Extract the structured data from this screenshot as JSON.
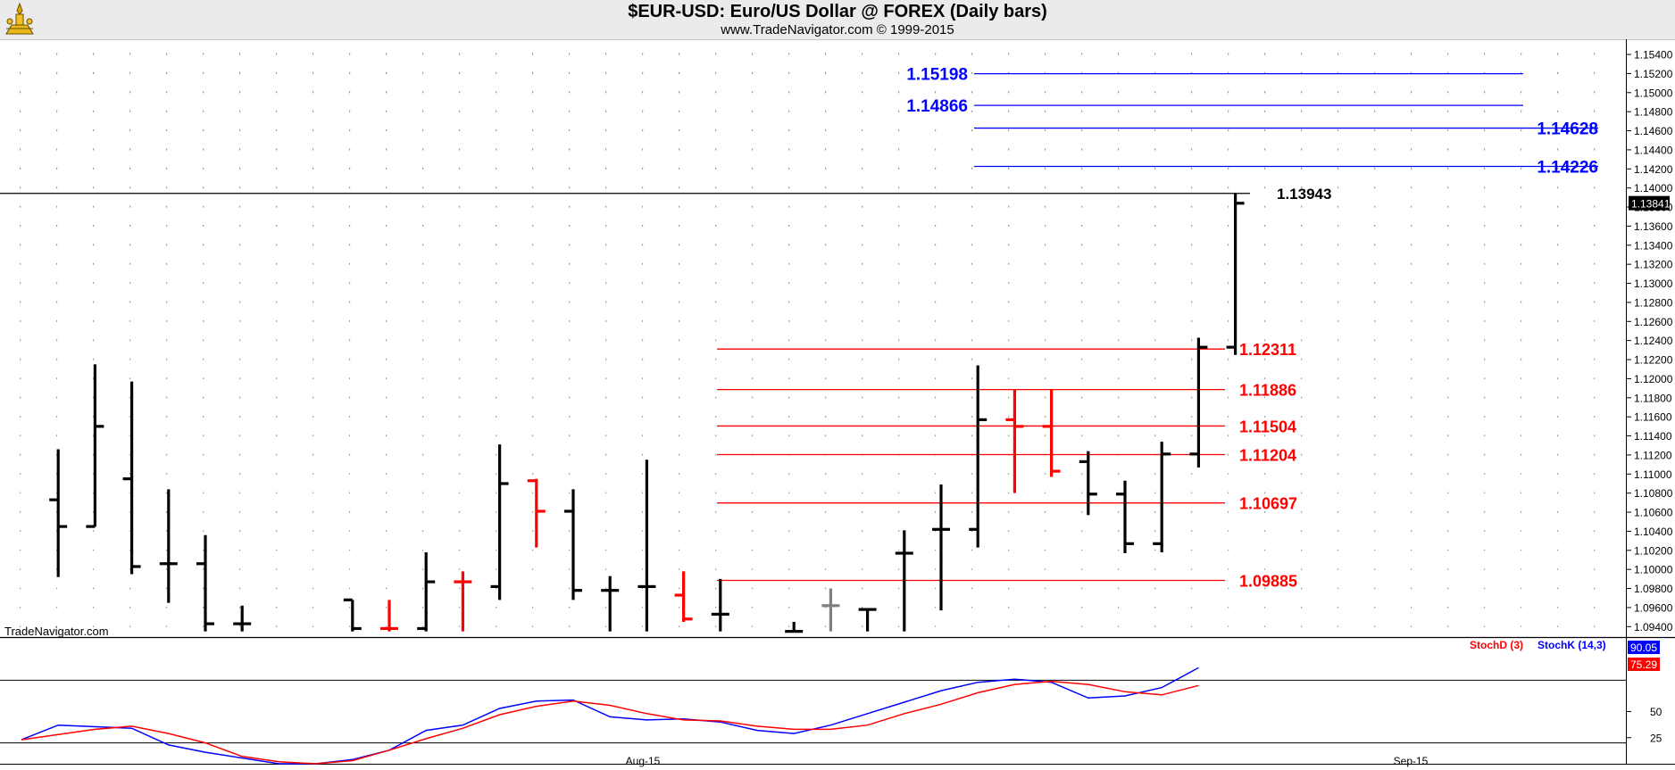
{
  "header": {
    "title": "$EUR-USD:  Euro/US Dollar @ FOREX  (Daily bars)",
    "subtitle": "www.TradeNavigator.com © 1999-2015"
  },
  "watermark": "TradeNavigator.com",
  "colors": {
    "up_bar": "#000000",
    "down_bar": "#ff0000",
    "neutral_bar": "#808080",
    "projection_line": "#0000ff",
    "retracement_line": "#ff0000",
    "stoch_d": "#ff0000",
    "stoch_k": "#0000ff",
    "grid_dots": "#9a9a9a"
  },
  "chart_data": [
    {
      "type": "ohlc",
      "title": "$EUR-USD:  Euro/US Dollar @ FOREX  (Daily bars)",
      "ylim": [
        1.093,
        1.1555
      ],
      "grid": true,
      "x_tick_labels": [
        "Aug-15",
        "Sep-15"
      ],
      "y_tick_labels": [
        "1.15400",
        "1.15200",
        "1.15000",
        "1.14800",
        "1.14600",
        "1.14400",
        "1.14200",
        "1.14000",
        "1.13800",
        "1.13600",
        "1.13400",
        "1.13200",
        "1.13000",
        "1.12800",
        "1.12600",
        "1.12400",
        "1.12200",
        "1.12000",
        "1.11800",
        "1.11600",
        "1.11400",
        "1.11200",
        "1.11000",
        "1.10800",
        "1.10600",
        "1.10400",
        "1.10200",
        "1.10000",
        "1.09800",
        "1.09600",
        "1.09400"
      ],
      "bars": [
        {
          "x": 1,
          "open": 1.1073,
          "high": 1.1126,
          "low": 1.0992,
          "close": 1.1045,
          "color": "up"
        },
        {
          "x": 2,
          "open": 1.1045,
          "high": 1.1215,
          "low": 1.1045,
          "close": 1.115,
          "color": "up"
        },
        {
          "x": 3,
          "open": 1.1095,
          "high": 1.1197,
          "low": 1.0995,
          "close": 1.1003,
          "color": "up"
        },
        {
          "x": 4,
          "open": 1.1006,
          "high": 1.1084,
          "low": 1.0965,
          "close": 1.1006,
          "color": "up"
        },
        {
          "x": 5,
          "open": 1.1006,
          "high": 1.1036,
          "low": 1.0935,
          "close": 1.0943,
          "color": "up"
        },
        {
          "x": 6,
          "open": 1.0943,
          "high": 1.0962,
          "low": 1.0935,
          "close": 1.0943,
          "color": "up"
        },
        {
          "x": 9,
          "open": 1.0968,
          "high": 1.0968,
          "low": 1.0935,
          "close": 1.0938,
          "color": "up"
        },
        {
          "x": 10,
          "open": 1.0938,
          "high": 1.0968,
          "low": 1.0935,
          "close": 1.0938,
          "color": "down"
        },
        {
          "x": 11,
          "open": 1.0938,
          "high": 1.1018,
          "low": 1.0935,
          "close": 1.0987,
          "color": "up"
        },
        {
          "x": 12,
          "open": 1.0987,
          "high": 1.0998,
          "low": 1.0935,
          "close": 1.0987,
          "color": "down"
        },
        {
          "x": 13,
          "open": 1.0982,
          "high": 1.1131,
          "low": 1.0968,
          "close": 1.109,
          "color": "up"
        },
        {
          "x": 14,
          "open": 1.1093,
          "high": 1.1095,
          "low": 1.1023,
          "close": 1.1061,
          "color": "down"
        },
        {
          "x": 15,
          "open": 1.1061,
          "high": 1.1084,
          "low": 1.0968,
          "close": 1.0978,
          "color": "up"
        },
        {
          "x": 16,
          "open": 1.0978,
          "high": 1.0993,
          "low": 1.0935,
          "close": 1.0978,
          "color": "up"
        },
        {
          "x": 17,
          "open": 1.0982,
          "high": 1.1115,
          "low": 1.0935,
          "close": 1.0982,
          "color": "up"
        },
        {
          "x": 18,
          "open": 1.0973,
          "high": 1.0998,
          "low": 1.0945,
          "close": 1.0948,
          "color": "down"
        },
        {
          "x": 19,
          "open": 1.0953,
          "high": 1.099,
          "low": 1.0935,
          "close": 1.0953,
          "color": "up"
        },
        {
          "x": 21,
          "open": 1.0935,
          "high": 1.0945,
          "low": 1.0935,
          "close": 1.0935,
          "color": "up"
        },
        {
          "x": 22,
          "open": 1.0962,
          "high": 1.098,
          "low": 1.0935,
          "close": 1.0962,
          "color": "neutral"
        },
        {
          "x": 23,
          "open": 1.0958,
          "high": 1.0958,
          "low": 1.0935,
          "close": 1.0958,
          "color": "up"
        },
        {
          "x": 24,
          "open": 1.1017,
          "high": 1.1041,
          "low": 1.0935,
          "close": 1.1017,
          "color": "up"
        },
        {
          "x": 25,
          "open": 1.1042,
          "high": 1.1089,
          "low": 1.0957,
          "close": 1.1042,
          "color": "up"
        },
        {
          "x": 26,
          "open": 1.1042,
          "high": 1.1214,
          "low": 1.1023,
          "close": 1.1157,
          "color": "up"
        },
        {
          "x": 27,
          "open": 1.1157,
          "high": 1.1189,
          "low": 1.108,
          "close": 1.115,
          "color": "down"
        },
        {
          "x": 28,
          "open": 1.115,
          "high": 1.1189,
          "low": 1.1097,
          "close": 1.1103,
          "color": "down"
        },
        {
          "x": 29,
          "open": 1.1113,
          "high": 1.1124,
          "low": 1.1057,
          "close": 1.1079,
          "color": "up"
        },
        {
          "x": 30,
          "open": 1.1079,
          "high": 1.1093,
          "low": 1.1017,
          "close": 1.1027,
          "color": "up"
        },
        {
          "x": 31,
          "open": 1.1027,
          "high": 1.1134,
          "low": 1.1018,
          "close": 1.1121,
          "color": "up"
        },
        {
          "x": 32,
          "open": 1.1121,
          "high": 1.1243,
          "low": 1.1107,
          "close": 1.1233,
          "color": "up"
        },
        {
          "x": 33,
          "open": 1.1233,
          "high": 1.1395,
          "low": 1.1225,
          "close": 1.1384,
          "color": "up"
        }
      ],
      "resistance_line": {
        "value": 1.13943,
        "label": "1.13943"
      },
      "projection_levels": [
        {
          "value": 1.15198,
          "label": "1.15198"
        },
        {
          "value": 1.14866,
          "label": "1.14866"
        },
        {
          "value": 1.14628,
          "label": "1.14628"
        },
        {
          "value": 1.14226,
          "label": "1.14226"
        }
      ],
      "retracement_levels": [
        {
          "value": 1.12311,
          "label": "1.12311"
        },
        {
          "value": 1.11886,
          "label": "1.11886"
        },
        {
          "value": 1.11504,
          "label": "1.11504"
        },
        {
          "value": 1.11204,
          "label": "1.11204"
        },
        {
          "value": 1.10697,
          "label": "1.10697"
        },
        {
          "value": 1.09885,
          "label": "1.09885"
        }
      ],
      "last_price_label": "1.13841"
    },
    {
      "type": "line",
      "ylim": [
        0,
        100
      ],
      "y_tick_labels": [
        "50",
        "25"
      ],
      "y_tick_values": [
        50,
        25
      ],
      "reference_lines": [
        80,
        20
      ],
      "legend": [
        "StochD (3)",
        "StochK (14,3)"
      ],
      "legend_placement": "top-right",
      "series": [
        {
          "name": "StochK (14,3)",
          "x": [
            0,
            1,
            3,
            4,
            5,
            7,
            8,
            9,
            10,
            11,
            12,
            13,
            14,
            15,
            16,
            17,
            18,
            19,
            20,
            21,
            22,
            23,
            24,
            25,
            26,
            27,
            28,
            29,
            30,
            31,
            32
          ],
          "values": [
            23,
            37,
            34,
            18,
            11,
            0,
            0,
            4,
            13,
            32,
            37,
            53,
            60,
            61,
            45,
            42,
            43,
            40,
            32,
            29,
            37,
            48,
            59,
            70,
            78,
            81,
            78,
            63,
            65,
            73,
            92
          ]
        },
        {
          "name": "StochD (3)",
          "x": [
            0,
            2,
            3,
            4,
            5,
            6,
            7,
            8,
            9,
            10,
            11,
            12,
            13,
            14,
            15,
            16,
            17,
            18,
            19,
            20,
            21,
            22,
            23,
            24,
            25,
            26,
            27,
            28,
            29,
            30,
            31,
            32
          ],
          "values": [
            23,
            33,
            36,
            29,
            20,
            7,
            2,
            0,
            3,
            13,
            24,
            34,
            47,
            55,
            60,
            56,
            48,
            42,
            41,
            36,
            33,
            33,
            37,
            48,
            57,
            68,
            76,
            79,
            76,
            69,
            66,
            75
          ]
        }
      ],
      "value_labels": [
        "90.05",
        "75.29"
      ]
    }
  ]
}
